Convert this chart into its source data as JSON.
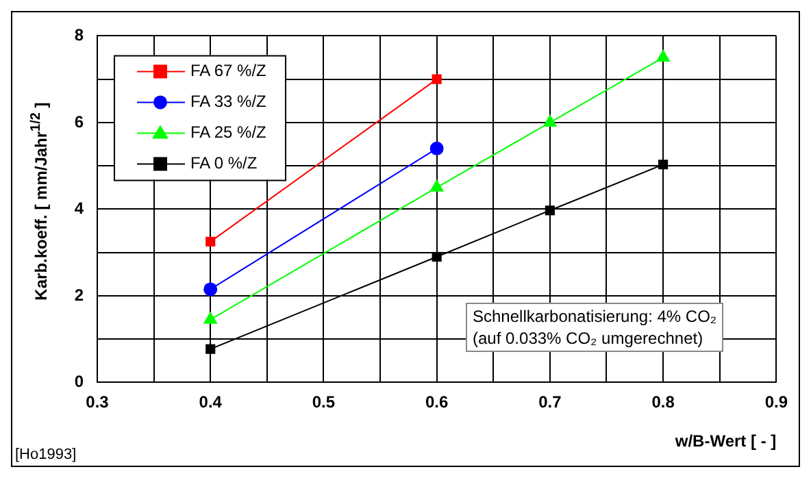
{
  "chart_data": {
    "type": "line",
    "xlabel": "w/B-Wert [ - ]",
    "ylabel": "Karb.koeff. [ mm/Jahr$^{1/2}$ ]",
    "xlim": [
      0.3,
      0.9
    ],
    "xticks": [
      0.3,
      {
        "value": 0.35,
        "label": null
      },
      0.4,
      {
        "value": 0.45,
        "label": null
      },
      0.5,
      {
        "value": 0.55,
        "label": null
      },
      0.6,
      {
        "value": 0.65,
        "label": null
      },
      0.7,
      {
        "value": 0.75,
        "label": null
      },
      0.8,
      {
        "value": 0.85,
        "label": null
      },
      0.9
    ],
    "ylim": [
      0,
      8
    ],
    "yticks": [
      0,
      {
        "value": 1,
        "label": null
      },
      2,
      {
        "value": 3,
        "label": null
      },
      4,
      {
        "value": 5,
        "label": null
      },
      6,
      {
        "value": 7,
        "label": null
      },
      8
    ],
    "grid": true,
    "legend": "top left",
    "line_style": "solid",
    "series": [
      {
        "name": "FA 67 %/Z",
        "color": "#ff0000",
        "marker": "square",
        "x": [
          0.4,
          0.6
        ],
        "values": [
          3.25,
          7.0
        ]
      },
      {
        "name": "FA 33 %/Z",
        "color": "#0000ff",
        "marker": "circle",
        "x": [
          0.4,
          0.6
        ],
        "values": [
          2.15,
          5.4
        ]
      },
      {
        "name": "FA 25 %/Z",
        "color": "#00ff00",
        "marker": "triangle",
        "x": [
          0.4,
          0.6,
          0.7,
          0.8
        ],
        "values": [
          1.45,
          4.5,
          6.0,
          7.5
        ]
      },
      {
        "name": "FA 0 %/Z",
        "color": "#000000",
        "marker": "square",
        "x": [
          0.4,
          0.6,
          0.7,
          0.8
        ],
        "values": [
          0.77,
          2.9,
          3.97,
          5.03
        ]
      }
    ],
    "annotations": [
      "Schnellkarbonatisierung: 4% CO₂",
      "(auf 0.033% CO₂ umgerechnet)",
      "[Ho1993]"
    ]
  }
}
